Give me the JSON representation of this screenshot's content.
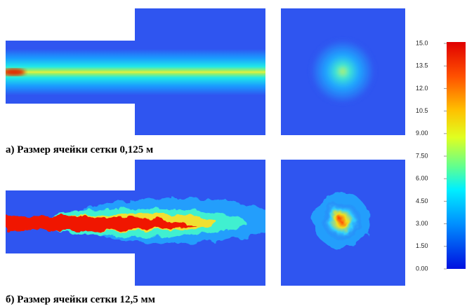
{
  "captions": [
    "а) Размер ячейки сетки 0,125 м",
    "б) Размер ячейки сетки 12,5 мм"
  ],
  "colorbar": {
    "range": [
      0,
      15
    ],
    "ticks": [
      {
        "value": 15,
        "label": "15.0"
      },
      {
        "value": 13.5,
        "label": "13.5"
      },
      {
        "value": 12,
        "label": "12.0"
      },
      {
        "value": 10.5,
        "label": "10.5"
      },
      {
        "value": 9,
        "label": "9.00"
      },
      {
        "value": 7.5,
        "label": "7.50"
      },
      {
        "value": 6,
        "label": "6.00"
      },
      {
        "value": 4.5,
        "label": "4.50"
      },
      {
        "value": 3,
        "label": "3.00"
      },
      {
        "value": 1.5,
        "label": "1.50"
      },
      {
        "value": 0,
        "label": "0.00"
      }
    ]
  }
}
